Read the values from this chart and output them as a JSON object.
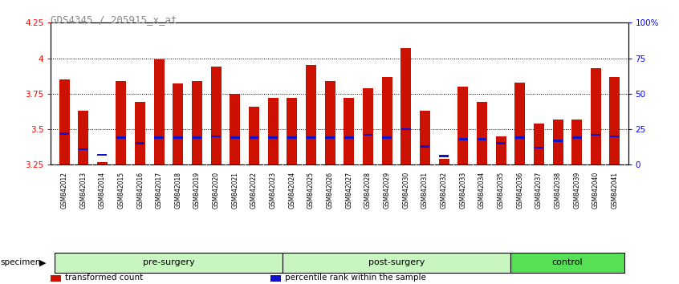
{
  "title": "GDS4345 / 205915_x_at",
  "samples": [
    "GSM842012",
    "GSM842013",
    "GSM842014",
    "GSM842015",
    "GSM842016",
    "GSM842017",
    "GSM842018",
    "GSM842019",
    "GSM842020",
    "GSM842021",
    "GSM842022",
    "GSM842023",
    "GSM842024",
    "GSM842025",
    "GSM842026",
    "GSM842027",
    "GSM842028",
    "GSM842029",
    "GSM842030",
    "GSM842031",
    "GSM842032",
    "GSM842033",
    "GSM842034",
    "GSM842035",
    "GSM842036",
    "GSM842037",
    "GSM842038",
    "GSM842039",
    "GSM842040",
    "GSM842041"
  ],
  "red_values": [
    3.85,
    3.63,
    3.27,
    3.84,
    3.69,
    3.99,
    3.82,
    3.84,
    3.94,
    3.75,
    3.66,
    3.72,
    3.72,
    3.95,
    3.84,
    3.72,
    3.79,
    3.87,
    4.07,
    3.63,
    3.29,
    3.8,
    3.69,
    3.45,
    3.83,
    3.54,
    3.57,
    3.57,
    3.93,
    3.87
  ],
  "blue_values": [
    3.47,
    3.36,
    3.32,
    3.44,
    3.4,
    3.44,
    3.44,
    3.44,
    3.45,
    3.44,
    3.44,
    3.44,
    3.44,
    3.44,
    3.44,
    3.44,
    3.46,
    3.44,
    3.5,
    3.38,
    3.31,
    3.43,
    3.43,
    3.4,
    3.44,
    3.37,
    3.42,
    3.44,
    3.46,
    3.45
  ],
  "groups": [
    {
      "name": "pre-surgery",
      "start": 0,
      "end": 12
    },
    {
      "name": "post-surgery",
      "start": 12,
      "end": 24
    },
    {
      "name": "control",
      "start": 24,
      "end": 30
    }
  ],
  "group_colors": [
    "#c8f5c0",
    "#c8f5c0",
    "#55e055"
  ],
  "ylim_left": [
    3.25,
    4.25
  ],
  "yticks_left": [
    3.25,
    3.5,
    3.75,
    4.0,
    4.25
  ],
  "ytick_labels_left": [
    "3.25",
    "3.5",
    "3.75",
    "4",
    "4.25"
  ],
  "yticks_right": [
    0,
    25,
    50,
    75,
    100
  ],
  "ytick_labels_right": [
    "0",
    "25",
    "50",
    "75",
    "100%"
  ],
  "grid_lines": [
    3.5,
    3.75,
    4.0
  ],
  "bar_color": "#CC1100",
  "marker_color": "#1111CC",
  "bar_width": 0.55,
  "legend_items": [
    {
      "color": "#CC1100",
      "label": "transformed count"
    },
    {
      "color": "#1111CC",
      "label": "percentile rank within the sample"
    }
  ],
  "specimen_label": "specimen",
  "xlabel_bg": "#d0d0d0",
  "title_color": "#888888",
  "title_fontsize": 9
}
